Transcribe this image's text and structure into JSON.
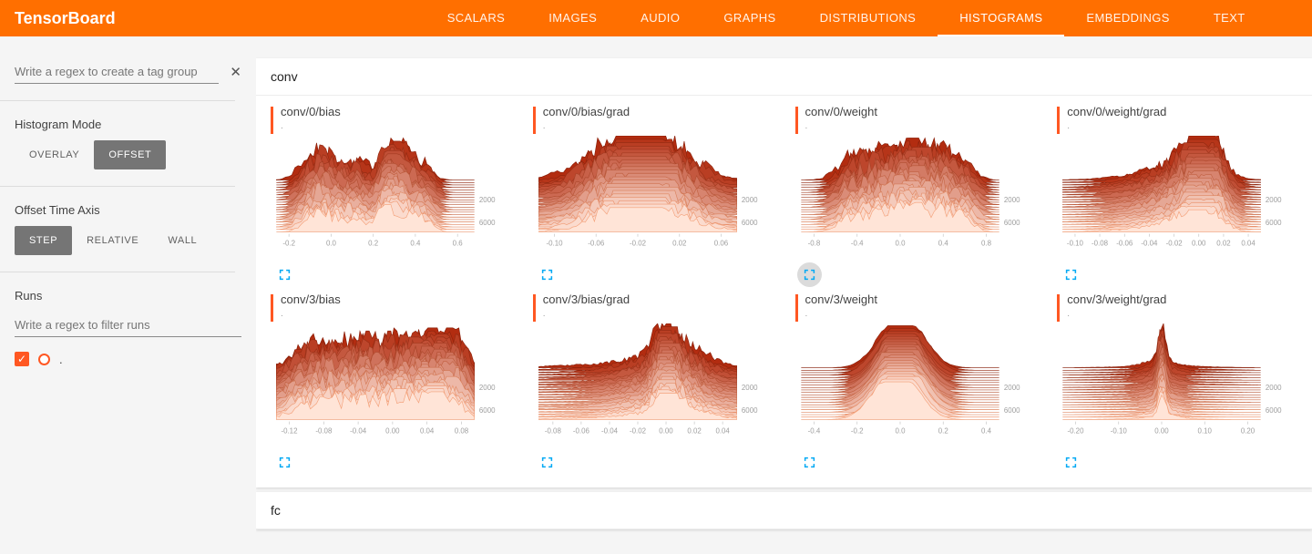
{
  "header": {
    "title": "TensorBoard",
    "tabs": [
      {
        "label": "SCALARS",
        "active": false
      },
      {
        "label": "IMAGES",
        "active": false
      },
      {
        "label": "AUDIO",
        "active": false
      },
      {
        "label": "GRAPHS",
        "active": false
      },
      {
        "label": "DISTRIBUTIONS",
        "active": false
      },
      {
        "label": "HISTOGRAMS",
        "active": true
      },
      {
        "label": "EMBEDDINGS",
        "active": false
      },
      {
        "label": "TEXT",
        "active": false
      }
    ]
  },
  "sidebar": {
    "tag_filter_placeholder": "Write a regex to create a tag group",
    "close_glyph": "✕",
    "histogram_mode": {
      "label": "Histogram Mode",
      "options": [
        "OVERLAY",
        "OFFSET"
      ],
      "selected": "OFFSET"
    },
    "offset_time_axis": {
      "label": "Offset Time Axis",
      "options": [
        "STEP",
        "RELATIVE",
        "WALL"
      ],
      "selected": "STEP"
    },
    "runs": {
      "label": "Runs",
      "filter_placeholder": "Write a regex to filter runs",
      "check_glyph": "✓",
      "items": [
        {
          "name": ".",
          "checked": true,
          "color": "#ff5722"
        }
      ]
    }
  },
  "main": {
    "sections": [
      {
        "title": "conv"
      },
      {
        "title": "fc"
      }
    ],
    "accent_color": "#ff5722",
    "expand_icon_color": "#03a9f4",
    "step_axis_labels": [
      "2000",
      "6000"
    ],
    "charts": [
      {
        "title": "conv/0/bias",
        "run": ".",
        "x_min": -0.26,
        "x_max": 0.68,
        "ticks": [
          "-0.2",
          "0.0",
          "0.2",
          "0.4",
          "0.6"
        ],
        "seed": 7,
        "noise": 0.8,
        "decay": 0.35,
        "amp": 38,
        "modes": [
          [
            -0.1,
            0.05,
            0.5
          ],
          [
            0.0,
            0.06,
            0.6
          ],
          [
            0.13,
            0.05,
            0.45
          ],
          [
            0.27,
            0.04,
            1.0
          ],
          [
            0.36,
            0.05,
            0.7
          ],
          [
            0.45,
            0.04,
            0.3
          ]
        ],
        "expand_active": false
      },
      {
        "title": "conv/0/bias/grad",
        "run": ".",
        "x_min": -0.115,
        "x_max": 0.075,
        "ticks": [
          "-0.10",
          "-0.06",
          "-0.02",
          "0.02",
          "0.06"
        ],
        "seed": 13,
        "noise": 0.7,
        "decay": 0.45,
        "amp": 40,
        "modes": [
          [
            -0.05,
            0.022,
            0.5
          ],
          [
            -0.025,
            0.018,
            0.8
          ],
          [
            -0.005,
            0.015,
            1.0
          ],
          [
            0.02,
            0.02,
            0.45
          ],
          [
            -0.02,
            0.05,
            0.35
          ]
        ],
        "expand_active": false
      },
      {
        "title": "conv/0/weight",
        "run": ".",
        "x_min": -0.92,
        "x_max": 0.92,
        "ticks": [
          "-0.8",
          "-0.4",
          "0.0",
          "0.4",
          "0.8"
        ],
        "seed": 23,
        "noise": 0.75,
        "decay": 0.3,
        "amp": 38,
        "modes": [
          [
            -0.45,
            0.12,
            0.5
          ],
          [
            -0.15,
            0.15,
            0.75
          ],
          [
            0.1,
            0.1,
            1.0
          ],
          [
            0.35,
            0.12,
            0.85
          ],
          [
            0.6,
            0.1,
            0.5
          ]
        ],
        "expand_active": true
      },
      {
        "title": "conv/0/weight/grad",
        "run": ".",
        "x_min": -0.11,
        "x_max": 0.05,
        "ticks": [
          "-0.10",
          "-0.08",
          "-0.06",
          "-0.04",
          "-0.02",
          "0.00",
          "0.02",
          "0.04"
        ],
        "seed": 31,
        "noise": 0.6,
        "decay": 0.5,
        "amp": 40,
        "samples": 80,
        "modes": [
          [
            0.0,
            0.01,
            1.0
          ],
          [
            -0.012,
            0.02,
            0.45
          ],
          [
            -0.035,
            0.03,
            0.18
          ],
          [
            0.015,
            0.008,
            0.5
          ]
        ],
        "expand_active": false
      },
      {
        "title": "conv/3/bias",
        "run": ".",
        "x_min": -0.135,
        "x_max": 0.095,
        "ticks": [
          "-0.12",
          "-0.08",
          "-0.04",
          "0.00",
          "0.04",
          "0.08"
        ],
        "seed": 41,
        "noise": 0.85,
        "decay": 0.3,
        "amp": 36,
        "modes": [
          [
            -0.1,
            0.02,
            0.5
          ],
          [
            -0.06,
            0.025,
            0.65
          ],
          [
            -0.02,
            0.02,
            0.55
          ],
          [
            0.02,
            0.02,
            0.8
          ],
          [
            0.05,
            0.015,
            1.0
          ],
          [
            0.075,
            0.012,
            0.6
          ]
        ],
        "expand_active": false
      },
      {
        "title": "conv/3/bias/grad",
        "run": ".",
        "x_min": -0.09,
        "x_max": 0.05,
        "ticks": [
          "-0.08",
          "-0.06",
          "-0.04",
          "-0.02",
          "0.00",
          "0.02",
          "0.04"
        ],
        "seed": 53,
        "noise": 0.6,
        "decay": 0.4,
        "amp": 40,
        "samples": 90,
        "modes": [
          [
            0.0,
            0.006,
            1.0
          ],
          [
            0.0,
            0.02,
            0.35
          ],
          [
            -0.005,
            0.045,
            0.12
          ],
          [
            0.015,
            0.01,
            0.25
          ]
        ],
        "expand_active": false
      },
      {
        "title": "conv/3/weight",
        "run": ".",
        "x_min": -0.46,
        "x_max": 0.46,
        "ticks": [
          "-0.4",
          "-0.2",
          "0.0",
          "0.2",
          "0.4"
        ],
        "seed": 61,
        "noise": 0.12,
        "decay": 0.1,
        "amp": 38,
        "modes": [
          [
            -0.05,
            0.08,
            0.9
          ],
          [
            0.05,
            0.08,
            0.9
          ]
        ],
        "expand_active": false
      },
      {
        "title": "conv/3/weight/grad",
        "run": ".",
        "x_min": -0.23,
        "x_max": 0.23,
        "ticks": [
          "-0.20",
          "-0.10",
          "0.00",
          "0.10",
          "0.20"
        ],
        "seed": 71,
        "noise": 0.5,
        "decay": 0.45,
        "amp": 40,
        "samples": 110,
        "modes": [
          [
            0.0,
            0.008,
            1.0
          ],
          [
            0.0,
            0.03,
            0.18
          ],
          [
            0.0,
            0.09,
            0.05
          ]
        ],
        "expand_active": false
      }
    ]
  }
}
